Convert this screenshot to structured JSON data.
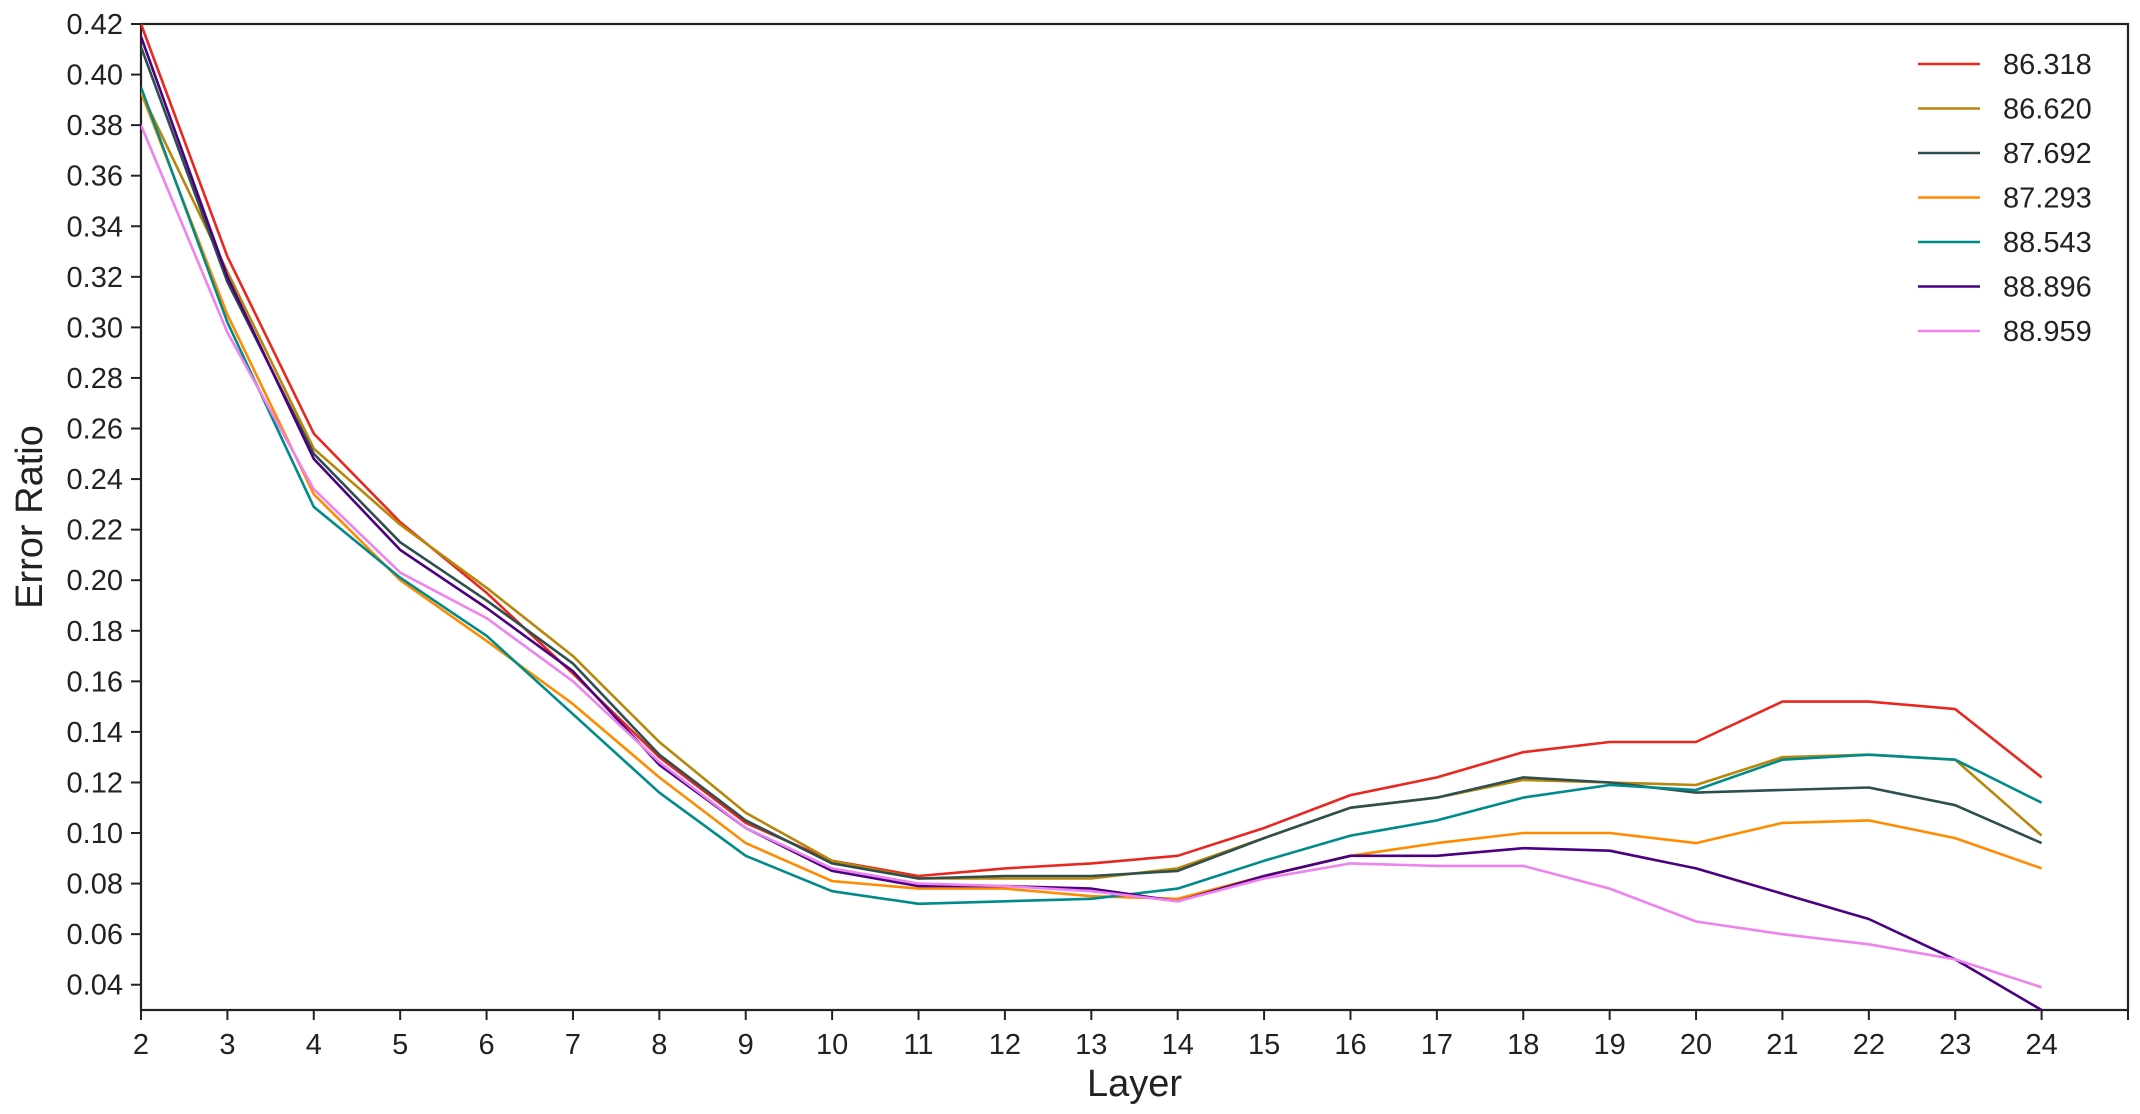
{
  "chart_data": {
    "type": "line",
    "title": "",
    "xlabel": "Layer",
    "ylabel": "Error Ratio",
    "x": [
      2,
      3,
      4,
      5,
      6,
      7,
      8,
      9,
      10,
      11,
      12,
      13,
      14,
      15,
      16,
      17,
      18,
      19,
      20,
      21,
      22,
      23,
      24
    ],
    "xticks": [
      2,
      3,
      4,
      5,
      6,
      7,
      8,
      9,
      10,
      11,
      12,
      13,
      14,
      15,
      16,
      17,
      18,
      19,
      20,
      21,
      22,
      23,
      24
    ],
    "xlim": [
      2,
      25
    ],
    "ylim": [
      0.03,
      0.42
    ],
    "yticks": [
      0.04,
      0.06,
      0.08,
      0.1,
      0.12,
      0.14,
      0.16,
      0.18,
      0.2,
      0.22,
      0.24,
      0.26,
      0.28,
      0.3,
      0.32,
      0.34,
      0.36,
      0.38,
      0.4,
      0.42
    ],
    "ytick_labels": [
      "0.04",
      "0.06",
      "0.08",
      "0.10",
      "0.12",
      "0.14",
      "0.16",
      "0.18",
      "0.20",
      "0.22",
      "0.24",
      "0.26",
      "0.28",
      "0.30",
      "0.32",
      "0.34",
      "0.36",
      "0.38",
      "0.40",
      "0.42"
    ],
    "grid": false,
    "legend_position": "top-right",
    "series": [
      {
        "name": "86.318",
        "color": "#e8281e",
        "values": [
          0.42,
          0.328,
          0.258,
          0.223,
          0.195,
          0.163,
          0.13,
          0.104,
          0.089,
          0.083,
          0.086,
          0.088,
          0.091,
          0.102,
          0.115,
          0.122,
          0.132,
          0.136,
          0.136,
          0.152,
          0.152,
          0.149,
          0.122
        ]
      },
      {
        "name": "86.620",
        "color": "#b8860b",
        "values": [
          0.393,
          0.322,
          0.252,
          0.222,
          0.197,
          0.17,
          0.136,
          0.108,
          0.089,
          0.082,
          0.082,
          0.082,
          0.086,
          0.098,
          0.11,
          0.114,
          0.121,
          0.12,
          0.119,
          0.13,
          0.131,
          0.129,
          0.099
        ]
      },
      {
        "name": "87.692",
        "color": "#2f4f4f",
        "values": [
          0.411,
          0.318,
          0.25,
          0.215,
          0.192,
          0.167,
          0.131,
          0.105,
          0.088,
          0.082,
          0.083,
          0.083,
          0.085,
          0.098,
          0.11,
          0.114,
          0.122,
          0.12,
          0.116,
          0.117,
          0.118,
          0.111,
          0.096
        ]
      },
      {
        "name": "87.293",
        "color": "#ff8c00",
        "values": [
          0.393,
          0.305,
          0.234,
          0.2,
          0.176,
          0.151,
          0.122,
          0.096,
          0.081,
          0.078,
          0.078,
          0.075,
          0.074,
          0.083,
          0.091,
          0.096,
          0.1,
          0.1,
          0.096,
          0.104,
          0.105,
          0.098,
          0.086
        ]
      },
      {
        "name": "88.543",
        "color": "#008b8b",
        "values": [
          0.395,
          0.302,
          0.229,
          0.201,
          0.178,
          0.147,
          0.116,
          0.091,
          0.077,
          0.072,
          0.073,
          0.074,
          0.078,
          0.089,
          0.099,
          0.105,
          0.114,
          0.119,
          0.117,
          0.129,
          0.131,
          0.129,
          0.112
        ]
      },
      {
        "name": "88.896",
        "color": "#4b0082",
        "values": [
          0.415,
          0.32,
          0.248,
          0.212,
          0.189,
          0.164,
          0.127,
          0.102,
          0.085,
          0.079,
          0.079,
          0.078,
          0.073,
          0.083,
          0.091,
          0.091,
          0.094,
          0.093,
          0.086,
          0.076,
          0.066,
          0.05,
          0.03
        ]
      },
      {
        "name": "88.959",
        "color": "#ee82ee",
        "values": [
          0.38,
          0.298,
          0.236,
          0.203,
          0.185,
          0.16,
          0.128,
          0.102,
          0.086,
          0.08,
          0.079,
          0.077,
          0.073,
          0.082,
          0.088,
          0.087,
          0.087,
          0.078,
          0.065,
          0.06,
          0.056,
          0.05,
          0.039
        ]
      }
    ]
  }
}
